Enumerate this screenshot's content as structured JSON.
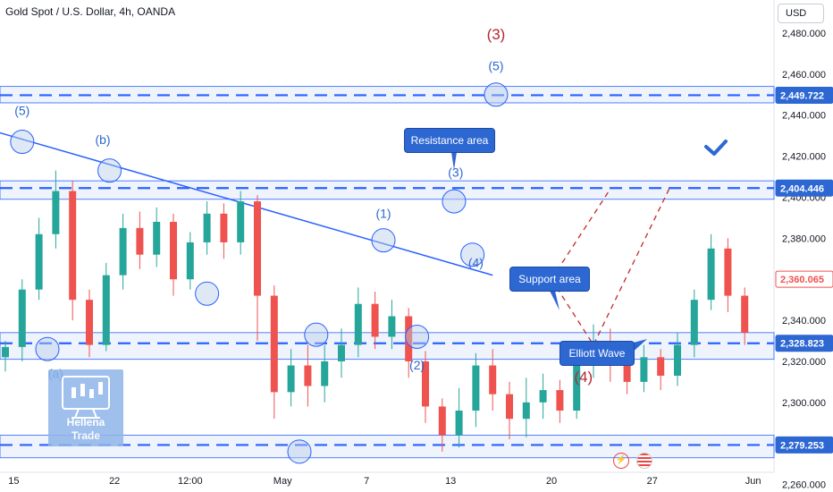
{
  "title": "Gold Spot / U.S. Dollar, 4h, OANDA",
  "currency_button": "USD",
  "colors": {
    "up": "#26a69a",
    "down": "#ef5350",
    "blue": "#2962ff",
    "zone_fill": "#bbd0f5",
    "label_blue": "#2d67d2",
    "label_red": "#b22733",
    "logo": "#8fb5e9"
  },
  "chart_data": {
    "type": "candlestick",
    "symbol": "Gold Spot / U.S. Dollar",
    "timeframe": "4h",
    "source": "OANDA",
    "y_axis": {
      "ticks": [
        "2,480.000",
        "2,460.000",
        "2,440.000",
        "2,420.000",
        "2,400.000",
        "2,380.000",
        "2,360.000",
        "2,340.000",
        "2,320.000",
        "2,300.000",
        "2,280.000",
        "2,260.000"
      ],
      "tick_values": [
        2480,
        2460,
        2440,
        2420,
        2400,
        2380,
        2360,
        2340,
        2320,
        2300,
        2280,
        2260
      ]
    },
    "x_axis": {
      "ticks": [
        "15",
        "22",
        "12:00",
        "May",
        "7",
        "13",
        "20",
        "27",
        "Jun"
      ],
      "tick_pos": [
        0.5,
        6.5,
        11,
        16.5,
        21.5,
        26.5,
        32.5,
        38.5,
        44.5
      ]
    },
    "price_labels": [
      {
        "text": "2,449.722",
        "value": 2449.722,
        "style": "blue"
      },
      {
        "text": "2,404.446",
        "value": 2404.446,
        "style": "blue"
      },
      {
        "text": "2,360.065",
        "value": 2360.065,
        "style": "red"
      },
      {
        "text": "2,328.823",
        "value": 2328.823,
        "style": "blue"
      },
      {
        "text": "2,279.253",
        "value": 2279.253,
        "style": "blue"
      }
    ],
    "horizontal_levels": [
      2449.722,
      2404.446,
      2328.823,
      2279.253
    ],
    "zones": [
      {
        "top": 2454,
        "bottom": 2446
      },
      {
        "top": 2408,
        "bottom": 2399
      },
      {
        "top": 2334,
        "bottom": 2321
      },
      {
        "top": 2284,
        "bottom": 2273
      }
    ],
    "trendline": {
      "from": {
        "x": -1,
        "y": 2433
      },
      "to": {
        "x": 29,
        "y": 2362
      }
    },
    "candles": [
      [
        2322,
        2327,
        2315,
        2330
      ],
      [
        2327,
        2355,
        2320,
        2360
      ],
      [
        2355,
        2382,
        2350,
        2390
      ],
      [
        2382,
        2403,
        2375,
        2413
      ],
      [
        2403,
        2350,
        2340,
        2408
      ],
      [
        2350,
        2328,
        2322,
        2355
      ],
      [
        2328,
        2362,
        2325,
        2368
      ],
      [
        2362,
        2385,
        2355,
        2392
      ],
      [
        2385,
        2372,
        2365,
        2393
      ],
      [
        2372,
        2388,
        2366,
        2395
      ],
      [
        2388,
        2360,
        2352,
        2392
      ],
      [
        2360,
        2378,
        2355,
        2383
      ],
      [
        2378,
        2392,
        2372,
        2398
      ],
      [
        2392,
        2378,
        2370,
        2397
      ],
      [
        2378,
        2398,
        2372,
        2403
      ],
      [
        2398,
        2352,
        2330,
        2401
      ],
      [
        2352,
        2305,
        2292,
        2357
      ],
      [
        2305,
        2318,
        2298,
        2326
      ],
      [
        2318,
        2308,
        2298,
        2328
      ],
      [
        2308,
        2320,
        2300,
        2328
      ],
      [
        2320,
        2328,
        2312,
        2336
      ],
      [
        2328,
        2348,
        2322,
        2356
      ],
      [
        2348,
        2332,
        2326,
        2354
      ],
      [
        2332,
        2342,
        2326,
        2350
      ],
      [
        2342,
        2320,
        2312,
        2346
      ],
      [
        2320,
        2298,
        2290,
        2325
      ],
      [
        2298,
        2284,
        2276,
        2302
      ],
      [
        2284,
        2296,
        2278,
        2307
      ],
      [
        2296,
        2318,
        2288,
        2324
      ],
      [
        2318,
        2304,
        2296,
        2326
      ],
      [
        2304,
        2292,
        2282,
        2310
      ],
      [
        2292,
        2300,
        2283,
        2312
      ],
      [
        2300,
        2306,
        2292,
        2314
      ],
      [
        2306,
        2296,
        2290,
        2311
      ],
      [
        2296,
        2318,
        2292,
        2326
      ],
      [
        2318,
        2330,
        2312,
        2338
      ],
      [
        2330,
        2318,
        2310,
        2336
      ],
      [
        2318,
        2310,
        2304,
        2322
      ],
      [
        2310,
        2322,
        2305,
        2328
      ],
      [
        2322,
        2313,
        2306,
        2326
      ],
      [
        2313,
        2328,
        2308,
        2334
      ],
      [
        2328,
        2350,
        2322,
        2355
      ],
      [
        2350,
        2375,
        2345,
        2382
      ],
      [
        2375,
        2352,
        2344,
        2380
      ],
      [
        2352,
        2334,
        2328,
        2356
      ]
    ],
    "projection": [
      {
        "x": 32.5,
        "y": 2360
      },
      {
        "x": 35,
        "y": 2328
      },
      {
        "x": 39.5,
        "y": 2404
      }
    ],
    "projection2": [
      {
        "x": 32.5,
        "y": 2360
      },
      {
        "x": 36,
        "y": 2404
      }
    ],
    "wave_labels": [
      {
        "text": "(5)",
        "x": 1,
        "y": 2440,
        "color": "blue"
      },
      {
        "text": "(b)",
        "x": 5.8,
        "y": 2426,
        "color": "blue"
      },
      {
        "text": "(a)",
        "x": 3,
        "y": 2312,
        "color": "blue"
      },
      {
        "text": "(1)",
        "x": 22.5,
        "y": 2390,
        "color": "blue"
      },
      {
        "text": "(2)",
        "x": 24.5,
        "y": 2316,
        "color": "blue"
      },
      {
        "text": "(3)",
        "x": 26.8,
        "y": 2410,
        "color": "blue"
      },
      {
        "text": "(4)",
        "x": 28,
        "y": 2366,
        "color": "blue"
      },
      {
        "text": "(5)",
        "x": 29.2,
        "y": 2462,
        "color": "blue"
      },
      {
        "text": "(3)",
        "x": 29.2,
        "y": 2477,
        "color": "red"
      },
      {
        "text": "(4)",
        "x": 34.4,
        "y": 2310,
        "color": "red"
      }
    ],
    "wave_circles": [
      {
        "x": 1,
        "y": 2427
      },
      {
        "x": 2.5,
        "y": 2326
      },
      {
        "x": 6.2,
        "y": 2413
      },
      {
        "x": 12,
        "y": 2353
      },
      {
        "x": 18.5,
        "y": 2333
      },
      {
        "x": 17.5,
        "y": 2276
      },
      {
        "x": 22.5,
        "y": 2379
      },
      {
        "x": 24.5,
        "y": 2332
      },
      {
        "x": 26.7,
        "y": 2398
      },
      {
        "x": 27.8,
        "y": 2372
      },
      {
        "x": 29.2,
        "y": 2450
      }
    ],
    "annotations": [
      "Resistance area",
      "Support area",
      "Elliott Wave"
    ]
  },
  "callouts": {
    "resistance": "Resistance area",
    "support": "Support area",
    "elliott": "Elliott Wave"
  },
  "logo": {
    "line1": "Hellena",
    "line2": "Trade",
    "icon": "chart-monitor-icon"
  },
  "footer_icons": [
    "lightning-icon",
    "us-flag-icon"
  ]
}
